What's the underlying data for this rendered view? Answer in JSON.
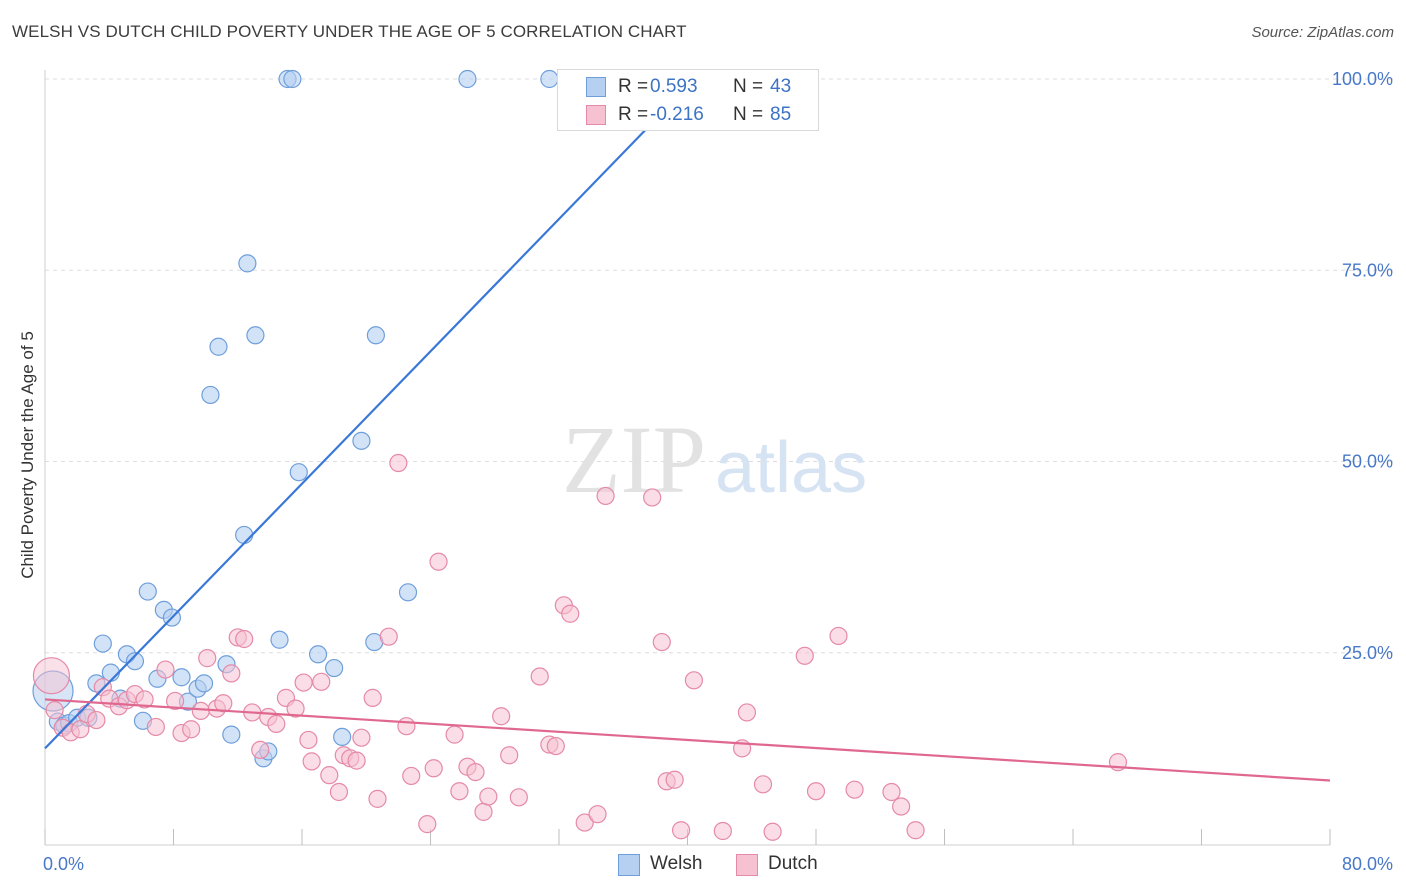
{
  "header": {
    "title": "WELSH VS DUTCH CHILD POVERTY UNDER THE AGE OF 5 CORRELATION CHART",
    "source": "Source: ZipAtlas.com"
  },
  "watermark": {
    "zip": "ZIP",
    "atlas": "atlas"
  },
  "stats": [
    {
      "r_label": "R =",
      "r_value": "0.593",
      "n_label": "N =",
      "n_value": "43"
    },
    {
      "r_label": "R =",
      "r_value": "-0.216",
      "n_label": "N =",
      "n_value": "85"
    }
  ],
  "legend": {
    "welsh": "Welsh",
    "dutch": "Dutch"
  },
  "colors": {
    "welsh_fill": "#b6d0f1",
    "welsh_stroke": "#6f9fdb",
    "welsh_line": "#3a78d8",
    "dutch_fill": "#f6c1d1",
    "dutch_stroke": "#e58aa8",
    "dutch_line": "#e0688f",
    "tick_label": "#4878c8",
    "grid": "#dddddd"
  },
  "chart_data": {
    "type": "scatter",
    "title": "WELSH VS DUTCH CHILD POVERTY UNDER THE AGE OF 5 CORRELATION CHART",
    "xlabel": "",
    "ylabel": "Child Poverty Under the Age of 5",
    "xlim": [
      0,
      80
    ],
    "ylim": [
      0,
      102
    ],
    "x_tick_labels": [
      "0.0%",
      "80.0%"
    ],
    "y_ticks": [
      25,
      50,
      75,
      100
    ],
    "y_tick_labels": [
      "25.0%",
      "50.0%",
      "75.0%",
      "100.0%"
    ],
    "grid": true,
    "legend_position": "bottom-center",
    "series": [
      {
        "name": "Welsh",
        "r": 0.593,
        "n": 43,
        "trend": {
          "x": [
            0,
            40
          ],
          "y": [
            12.5,
            99
          ]
        },
        "points": [
          [
            0.5,
            20
          ],
          [
            0.8,
            16
          ],
          [
            1.2,
            15.5
          ],
          [
            1.5,
            15.8
          ],
          [
            2.0,
            16.5
          ],
          [
            2.7,
            16.5
          ],
          [
            3.2,
            21
          ],
          [
            3.6,
            26.2
          ],
          [
            4.1,
            22.4
          ],
          [
            4.7,
            19
          ],
          [
            5.1,
            24.8
          ],
          [
            5.6,
            23.9
          ],
          [
            6.1,
            16.1
          ],
          [
            6.4,
            33
          ],
          [
            7.0,
            21.6
          ],
          [
            7.4,
            30.6
          ],
          [
            7.9,
            29.6
          ],
          [
            8.5,
            21.8
          ],
          [
            8.9,
            18.6
          ],
          [
            9.5,
            20.3
          ],
          [
            9.9,
            21
          ],
          [
            10.3,
            58.7
          ],
          [
            10.8,
            65
          ],
          [
            11.3,
            23.5
          ],
          [
            11.6,
            14.3
          ],
          [
            12.4,
            40.4
          ],
          [
            12.6,
            75.9
          ],
          [
            13.1,
            66.5
          ],
          [
            13.6,
            11.2
          ],
          [
            13.9,
            12.1
          ],
          [
            14.6,
            26.7
          ],
          [
            15.1,
            100
          ],
          [
            15.4,
            100
          ],
          [
            15.8,
            48.6
          ],
          [
            17.0,
            24.8
          ],
          [
            18.0,
            23
          ],
          [
            18.5,
            14
          ],
          [
            19.7,
            52.7
          ],
          [
            20.5,
            26.4
          ],
          [
            20.6,
            66.5
          ],
          [
            22.6,
            32.9
          ],
          [
            26.3,
            100
          ],
          [
            31.4,
            100
          ]
        ]
      },
      {
        "name": "Dutch",
        "r": -0.216,
        "n": 85,
        "trend": {
          "x": [
            0,
            80
          ],
          "y": [
            18.9,
            8.3
          ]
        },
        "points": [
          [
            0.4,
            22
          ],
          [
            0.6,
            17.5
          ],
          [
            1.1,
            15.2
          ],
          [
            1.6,
            14.6
          ],
          [
            2.2,
            15
          ],
          [
            2.6,
            17
          ],
          [
            3.2,
            16.2
          ],
          [
            3.6,
            20.5
          ],
          [
            4.0,
            19
          ],
          [
            4.6,
            18
          ],
          [
            5.1,
            18.8
          ],
          [
            5.6,
            19.6
          ],
          [
            6.2,
            18.9
          ],
          [
            6.9,
            15.3
          ],
          [
            7.5,
            22.8
          ],
          [
            8.1,
            18.7
          ],
          [
            8.5,
            14.5
          ],
          [
            9.1,
            15
          ],
          [
            9.7,
            17.4
          ],
          [
            10.1,
            24.3
          ],
          [
            10.7,
            17.7
          ],
          [
            11.1,
            18.4
          ],
          [
            11.6,
            22.3
          ],
          [
            12.0,
            27
          ],
          [
            12.4,
            26.8
          ],
          [
            12.9,
            17.2
          ],
          [
            13.4,
            12.3
          ],
          [
            13.9,
            16.6
          ],
          [
            14.4,
            15.7
          ],
          [
            15.0,
            19.1
          ],
          [
            15.6,
            17.7
          ],
          [
            16.1,
            21.1
          ],
          [
            16.4,
            13.6
          ],
          [
            16.6,
            10.8
          ],
          [
            17.2,
            21.2
          ],
          [
            17.7,
            9
          ],
          [
            18.3,
            6.8
          ],
          [
            18.6,
            11.6
          ],
          [
            19.0,
            11.2
          ],
          [
            19.4,
            10.9
          ],
          [
            19.7,
            13.9
          ],
          [
            20.4,
            19.1
          ],
          [
            20.7,
            5.9
          ],
          [
            21.4,
            27.1
          ],
          [
            22.0,
            49.8
          ],
          [
            22.5,
            15.4
          ],
          [
            22.8,
            8.9
          ],
          [
            23.8,
            2.6
          ],
          [
            24.2,
            9.9
          ],
          [
            24.5,
            36.9
          ],
          [
            25.5,
            14.3
          ],
          [
            25.8,
            6.9
          ],
          [
            26.3,
            10.1
          ],
          [
            26.8,
            9.4
          ],
          [
            27.3,
            4.2
          ],
          [
            27.6,
            6.2
          ],
          [
            28.4,
            16.7
          ],
          [
            28.9,
            11.6
          ],
          [
            29.5,
            6.1
          ],
          [
            30.8,
            21.9
          ],
          [
            31.4,
            13
          ],
          [
            31.8,
            12.8
          ],
          [
            32.3,
            31.2
          ],
          [
            32.7,
            30.1
          ],
          [
            33.6,
            2.8
          ],
          [
            34.4,
            3.9
          ],
          [
            34.9,
            45.5
          ],
          [
            37.8,
            45.3
          ],
          [
            38.4,
            26.4
          ],
          [
            38.7,
            8.2
          ],
          [
            39.2,
            8.4
          ],
          [
            39.6,
            1.8
          ],
          [
            40.4,
            21.4
          ],
          [
            42.2,
            1.7
          ],
          [
            43.4,
            12.5
          ],
          [
            43.7,
            17.2
          ],
          [
            44.7,
            7.8
          ],
          [
            45.3,
            1.6
          ],
          [
            47.3,
            24.6
          ],
          [
            48.0,
            6.9
          ],
          [
            49.4,
            27.2
          ],
          [
            50.4,
            7.1
          ],
          [
            52.7,
            6.8
          ],
          [
            53.3,
            4.9
          ],
          [
            54.2,
            1.8
          ],
          [
            66.8,
            10.7
          ]
        ]
      }
    ]
  }
}
